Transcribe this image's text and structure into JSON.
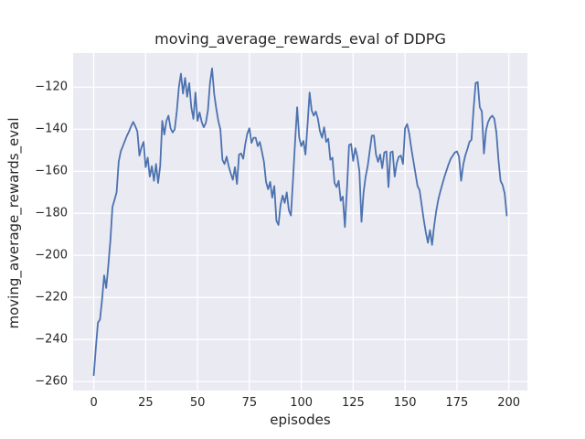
{
  "figure": {
    "kind": "matplotlib-seaborn-figure",
    "background": "#ffffff"
  },
  "chart_data": {
    "type": "line",
    "title": "moving_average_rewards_eval of DDPG",
    "xlabel": "episodes",
    "ylabel": "moving_average_rewards_eval",
    "xlim": [
      -9.95,
      208.95
    ],
    "ylim": [
      -264.3,
      -103.7
    ],
    "xticks": [
      0,
      25,
      50,
      75,
      100,
      125,
      150,
      175,
      200
    ],
    "yticks": [
      -120,
      -140,
      -160,
      -180,
      -200,
      -220,
      -240,
      -260
    ],
    "grid": true,
    "grid_color": "#ffffff",
    "plot_bg_color": "#eaeaf2",
    "text_color": "#262626",
    "legend": false,
    "series": [
      {
        "name": "moving_average_rewards_eval",
        "color": "#4c72b0",
        "line_width": 1.8,
        "x_start": 0,
        "x_step": 1,
        "values": [
          -257,
          -244,
          -232,
          -230.5,
          -221,
          -209.5,
          -215.5,
          -205,
          -193,
          -177,
          -173.5,
          -170,
          -155.5,
          -150.5,
          -148,
          -145.5,
          -143,
          -141,
          -138.5,
          -136.5,
          -138.5,
          -141,
          -152.5,
          -148.5,
          -146,
          -158,
          -153.5,
          -162.5,
          -157.5,
          -164.5,
          -156.5,
          -165.5,
          -157.5,
          -136,
          -142.5,
          -136,
          -133.5,
          -139.5,
          -141.5,
          -140,
          -131.5,
          -120,
          -113.5,
          -123,
          -115.5,
          -124.5,
          -118,
          -129.5,
          -135,
          -122.5,
          -136,
          -132,
          -136.5,
          -139,
          -137,
          -131,
          -118,
          -111,
          -123,
          -130,
          -136,
          -140,
          -154.5,
          -156.5,
          -153,
          -157.5,
          -161,
          -164,
          -158,
          -166,
          -152,
          -151.5,
          -154,
          -147,
          -142,
          -139.5,
          -146.5,
          -144,
          -144,
          -148,
          -146,
          -150.5,
          -155.5,
          -165,
          -168.5,
          -165,
          -172.5,
          -167,
          -183.5,
          -185.5,
          -176,
          -171.5,
          -175,
          -170,
          -178.5,
          -181,
          -164,
          -146,
          -129.5,
          -144,
          -148,
          -145.5,
          -152,
          -138,
          -122.5,
          -131,
          -133.5,
          -131.5,
          -135,
          -141,
          -144,
          -139,
          -146,
          -144.5,
          -154.5,
          -153.5,
          -165.5,
          -167.5,
          -164.5,
          -174,
          -172,
          -186.5,
          -168.5,
          -147.5,
          -147,
          -155,
          -149,
          -153,
          -160,
          -184,
          -170,
          -162.5,
          -157.5,
          -150,
          -143,
          -143,
          -152,
          -155.5,
          -152,
          -158.5,
          -151,
          -150.5,
          -167.5,
          -151,
          -150.5,
          -162.5,
          -156,
          -153,
          -152.5,
          -156.5,
          -139.5,
          -137.5,
          -142,
          -149,
          -155,
          -161,
          -167,
          -169,
          -176,
          -183,
          -189,
          -194,
          -188,
          -195,
          -186,
          -179,
          -173.5,
          -169.5,
          -166,
          -162.5,
          -159.5,
          -156.5,
          -154,
          -152.5,
          -151,
          -150.5,
          -153,
          -164.5,
          -157,
          -152.5,
          -149.5,
          -146,
          -145,
          -130.5,
          -118,
          -117.5,
          -129.5,
          -131.5,
          -151.5,
          -140.5,
          -136.5,
          -134.5,
          -133.5,
          -135,
          -141.5,
          -154.5,
          -164.5,
          -166.5,
          -170.5,
          -181
        ]
      }
    ]
  }
}
